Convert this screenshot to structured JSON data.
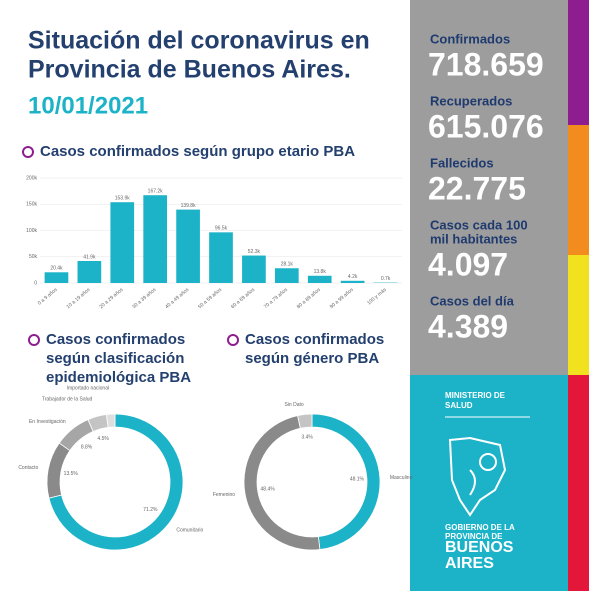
{
  "header": {
    "title_lines": [
      "Situación del coronavirus en",
      "Provincia de Buenos Aires."
    ],
    "date": "10/01/2021"
  },
  "stats": [
    {
      "label_lines": [
        "Confirmados"
      ],
      "value": "718.659"
    },
    {
      "label_lines": [
        "Recuperados"
      ],
      "value": "615.076"
    },
    {
      "label_lines": [
        "Fallecidos"
      ],
      "value": "22.775"
    },
    {
      "label_lines": [
        "Casos cada 100",
        "mil habitantes"
      ],
      "value": "4.097"
    },
    {
      "label_lines": [
        "Casos del día"
      ],
      "value": "4.389"
    }
  ],
  "chart_data": [
    {
      "type": "bar",
      "title_lines": [
        "Casos confirmados según grupo etario PBA"
      ],
      "categories": [
        "0 a 9 años",
        "10 a 19 años",
        "20 a 29 años",
        "30 a 39 años",
        "40 a 49 años",
        "50 a 59 años",
        "60 a 69 años",
        "70 a 79 años",
        "80 a 89 años",
        "90 a 99 años",
        "100 y más"
      ],
      "values": [
        20400,
        41900,
        153900,
        167200,
        139800,
        96500,
        52300,
        28100,
        13800,
        4200,
        700
      ],
      "value_labels": [
        "20.4k",
        "41.9k",
        "153.9k",
        "167.2k",
        "139.8k",
        "96.5k",
        "52.3k",
        "28.1k",
        "13.8k",
        "4.2k",
        "0.7k"
      ],
      "color": "#1cb3c8",
      "ylim": [
        0,
        200000
      ],
      "yticks": [
        0,
        {
          "value": 50000,
          "label": "50k"
        },
        {
          "value": 100000,
          "label": "100k"
        },
        {
          "value": 150000,
          "label": "150k"
        },
        {
          "value": 200000,
          "label": "200k"
        }
      ],
      "grid": true
    },
    {
      "type": "donut",
      "title_lines": [
        "Casos confirmados",
        "según clasificación",
        "epidemiológica PBA"
      ],
      "categories": [
        "Comunitario",
        "Contacto",
        "En Investigación",
        "Trabajador de la Salud",
        "Importado nacional"
      ],
      "values": [
        71.2,
        13.5,
        8.8,
        4.5,
        2.0
      ],
      "value_labels": [
        "71.2%",
        "13.5%",
        "8.8%",
        "4.5%",
        null
      ],
      "colors": [
        "#1cb3c8",
        "#8a8a8a",
        "#a6a6a6",
        "#c4c4c4",
        "#dedede"
      ]
    },
    {
      "type": "donut",
      "title_lines": [
        "Casos confirmados",
        "según género PBA"
      ],
      "categories": [
        "Masculino",
        "Femenino",
        "Sin Dato"
      ],
      "values": [
        48.1,
        48.4,
        3.4
      ],
      "value_labels": [
        "48.1%",
        "48.4%",
        "3.4%"
      ],
      "colors": [
        "#1cb3c8",
        "#8a8a8a",
        "#c4c4c4"
      ]
    }
  ],
  "logo": {
    "ministry_lines": [
      "MINISTERIO DE",
      "SALUD"
    ],
    "gov_lines": [
      "GOBIERNO DE LA",
      "PROVINCIA DE"
    ],
    "name_lines": [
      "BUENOS",
      "AIRES"
    ]
  }
}
